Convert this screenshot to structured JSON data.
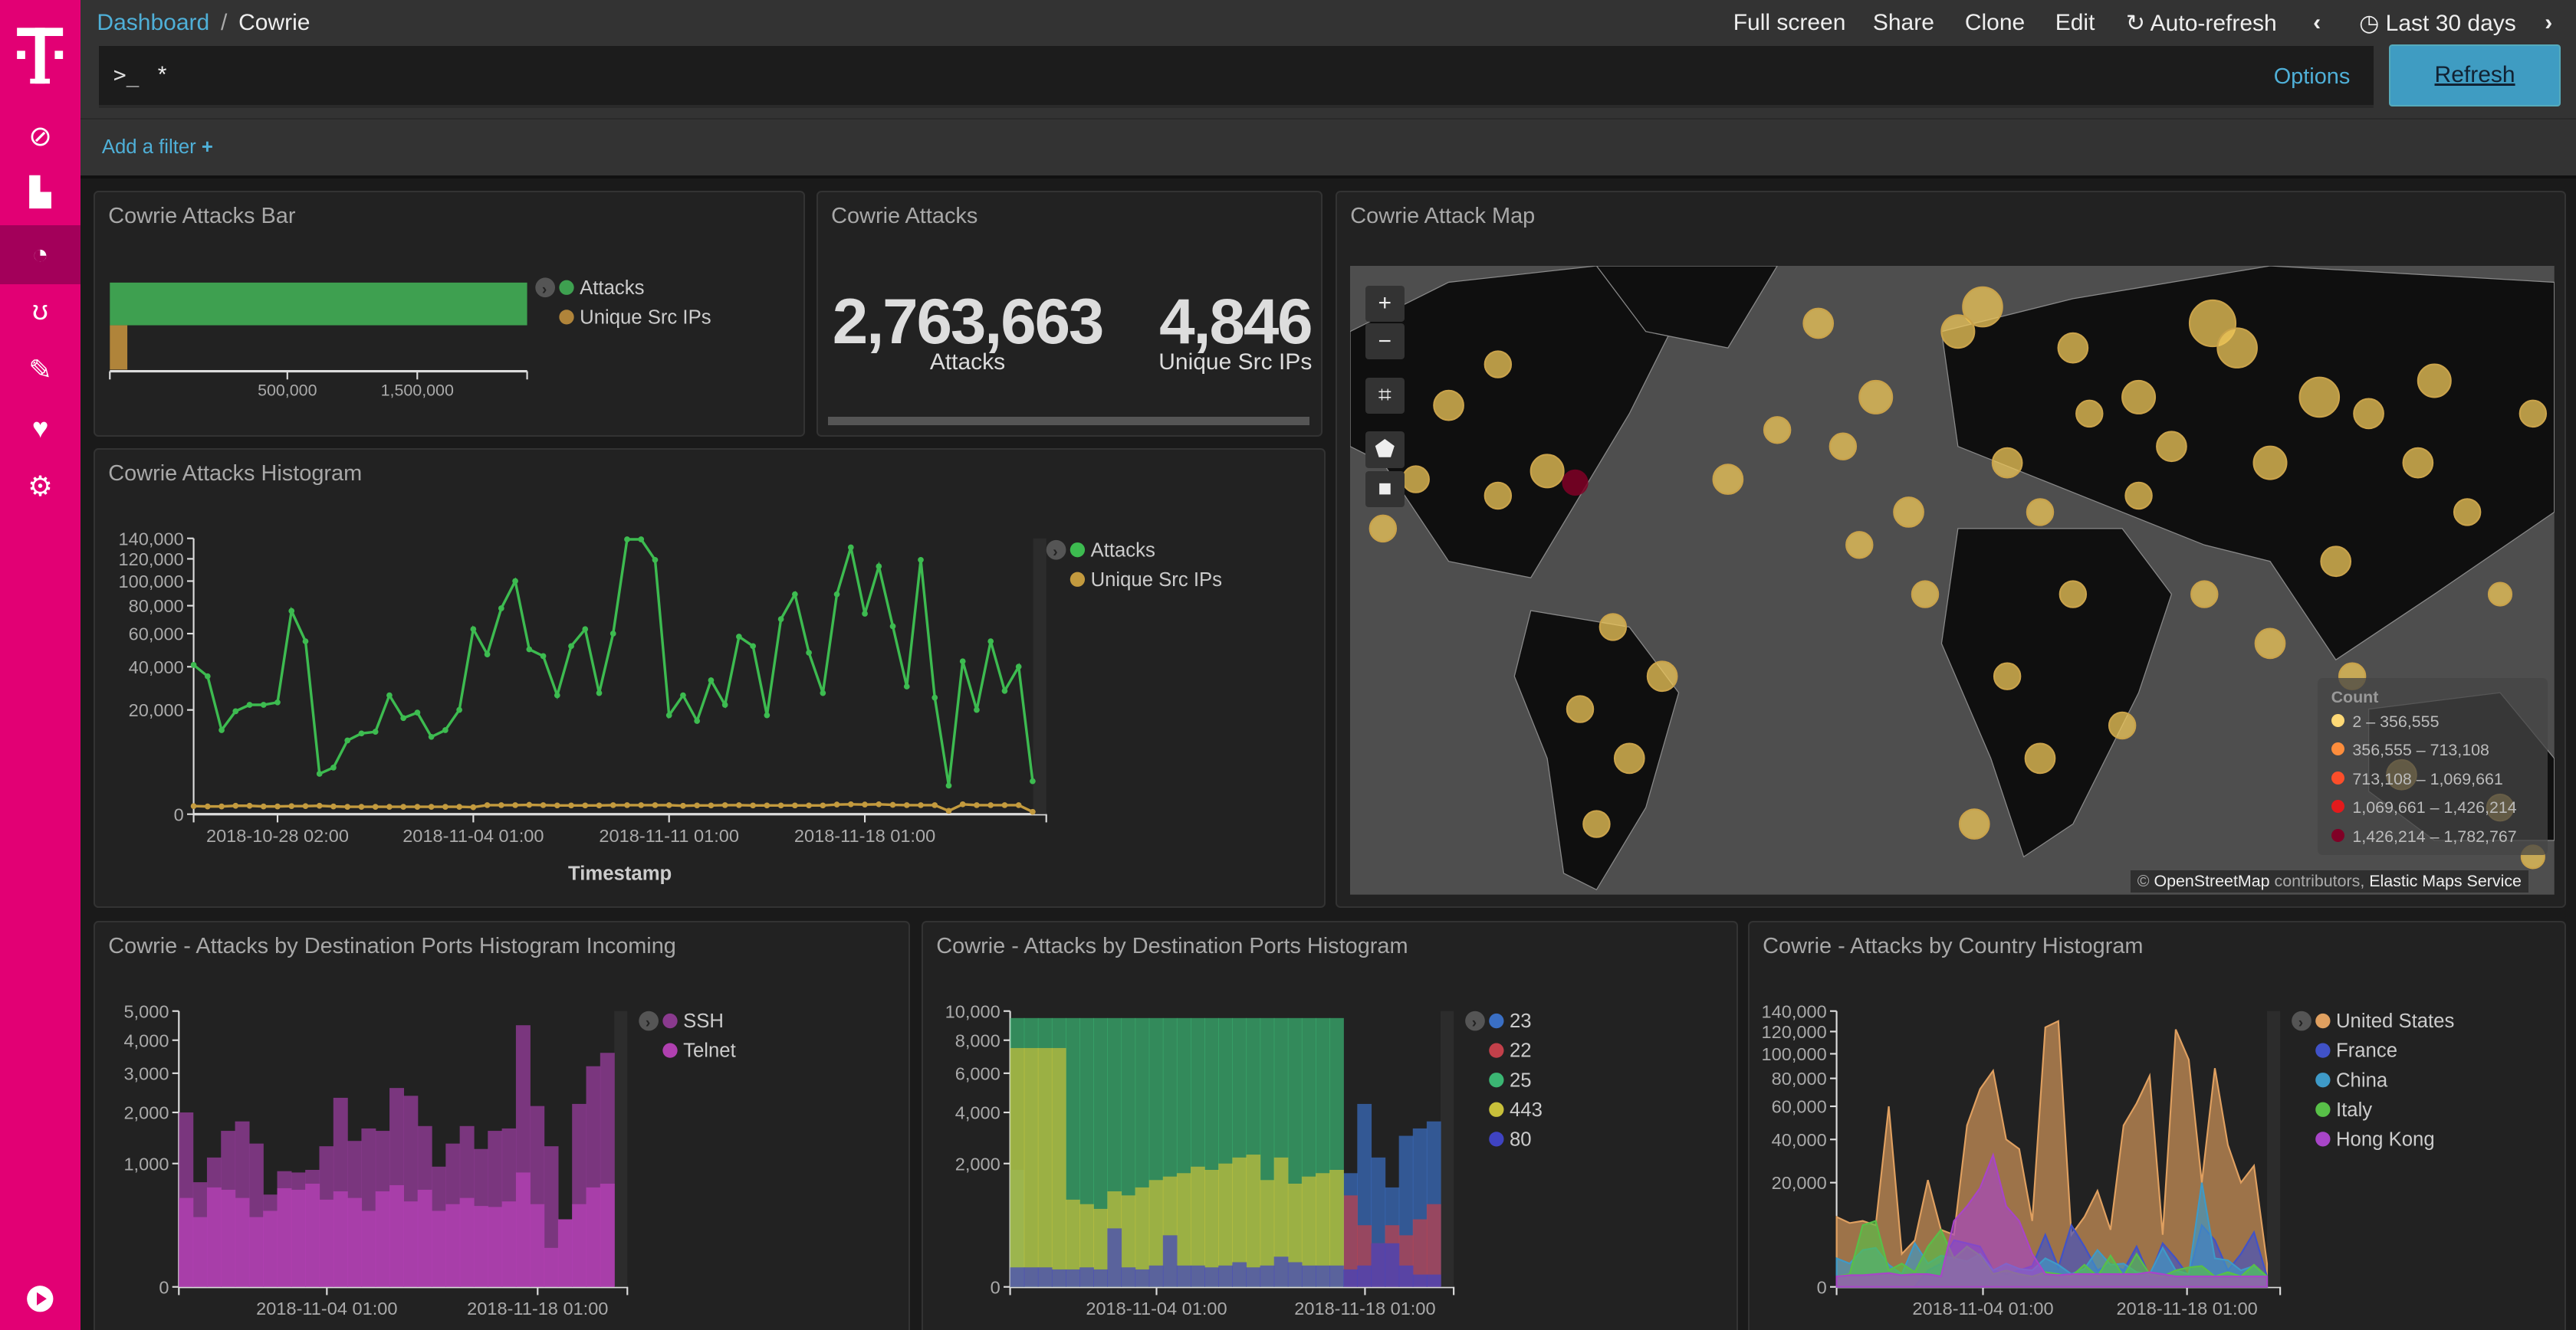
{
  "app": {
    "brand_color": "#e20074",
    "sidebar_items": [
      {
        "name": "discover",
        "icon": "compass-icon"
      },
      {
        "name": "visualize",
        "icon": "bar-chart-icon"
      },
      {
        "name": "dashboard",
        "icon": "dashboard-icon",
        "active": true
      },
      {
        "name": "canvas",
        "icon": "bear-icon"
      },
      {
        "name": "dev-tools",
        "icon": "wrench-icon"
      },
      {
        "name": "monitoring",
        "icon": "heartbeat-icon"
      },
      {
        "name": "management",
        "icon": "gear-icon"
      }
    ]
  },
  "header": {
    "breadcrumb_root": "Dashboard",
    "breadcrumb_sep": "/",
    "breadcrumb_current": "Cowrie",
    "full_screen": "Full screen",
    "share": "Share",
    "clone": "Clone",
    "edit": "Edit",
    "auto_refresh": "Auto-refresh",
    "time_range": "Last 30 days"
  },
  "query": {
    "prompt": ">_",
    "value": "*",
    "options": "Options",
    "refresh": "Refresh"
  },
  "filters": {
    "add_filter": "Add a filter"
  },
  "panels": {
    "bar": {
      "title": "Cowrie Attacks Bar"
    },
    "metric": {
      "title": "Cowrie Attacks",
      "items": [
        {
          "value": "2,763,663",
          "label": "Attacks"
        },
        {
          "value": "4,846",
          "label": "Unique Src IPs"
        }
      ]
    },
    "map": {
      "title": "Cowrie Attack Map",
      "legend_title": "Count",
      "legend": [
        {
          "label": "2 – 356,555",
          "color": "#fed976"
        },
        {
          "label": "356,555 – 713,108",
          "color": "#fd8d3c"
        },
        {
          "label": "713,108 – 1,069,661",
          "color": "#fc4e2a"
        },
        {
          "label": "1,069,661 – 1,426,214",
          "color": "#e31a1c"
        },
        {
          "label": "1,426,214 – 1,782,767",
          "color": "#800026"
        }
      ],
      "attribution_prefix": "©",
      "attribution_osm": "OpenStreetMap",
      "attribution_mid": "contributors,",
      "attribution_ems": "Elastic Maps Service"
    },
    "histogram": {
      "title": "Cowrie Attacks Histogram"
    },
    "ports_in": {
      "title": "Cowrie - Attacks by Destination Ports Histogram Incoming"
    },
    "ports": {
      "title": "Cowrie - Attacks by Destination Ports Histogram"
    },
    "country": {
      "title": "Cowrie - Attacks by Country Histogram"
    }
  },
  "chart_data": [
    {
      "id": "bar",
      "type": "bar",
      "orientation": "horizontal",
      "scale": "sqrt",
      "series": [
        {
          "name": "Attacks",
          "values": [
            2763663
          ],
          "color": "#3ea050"
        },
        {
          "name": "Unique Src IPs",
          "values": [
            4846
          ],
          "color": "#b0843a"
        }
      ],
      "x_ticks": [
        "500,000",
        "1,500,000"
      ],
      "xlim": [
        0,
        2763663
      ]
    },
    {
      "id": "histogram",
      "type": "line",
      "scale": "sqrt",
      "xlabel": "Timestamp",
      "ylim": [
        0,
        140000
      ],
      "y_ticks": [
        "0",
        "20,000",
        "40,000",
        "60,000",
        "80,000",
        "100,000",
        "120,000",
        "140,000"
      ],
      "x_ticks": [
        "2018-10-28 02:00",
        "2018-11-04 01:00",
        "2018-11-11 01:00",
        "2018-11-18 01:00"
      ],
      "series": [
        {
          "name": "Attacks",
          "color": "#3dbb50",
          "values": [
            41000,
            35000,
            13000,
            19500,
            22000,
            22000,
            23000,
            76000,
            55000,
            3000,
            4000,
            10000,
            12000,
            12500,
            26000,
            17000,
            19000,
            11000,
            13000,
            20000,
            63000,
            47000,
            78000,
            100000,
            50000,
            46000,
            26000,
            52000,
            63000,
            27000,
            60000,
            139000,
            139000,
            119000,
            18000,
            26000,
            16000,
            33000,
            22000,
            58000,
            52000,
            18000,
            70000,
            89000,
            48000,
            27000,
            89000,
            131000,
            74000,
            113000,
            65000,
            30000,
            119000,
            25000,
            1500,
            43000,
            20000,
            55000,
            28000,
            40000,
            2000
          ]
        },
        {
          "name": "Unique Src IPs",
          "color": "#c39a3e",
          "values": [
            120,
            110,
            110,
            130,
            130,
            110,
            110,
            120,
            120,
            130,
            110,
            100,
            100,
            100,
            100,
            100,
            100,
            100,
            100,
            100,
            90,
            150,
            150,
            150,
            160,
            150,
            140,
            140,
            140,
            140,
            150,
            150,
            150,
            150,
            150,
            130,
            140,
            140,
            150,
            150,
            140,
            140,
            140,
            140,
            140,
            140,
            170,
            180,
            170,
            180,
            160,
            150,
            150,
            150,
            20,
            180,
            150,
            150,
            150,
            150,
            10
          ]
        }
      ]
    },
    {
      "id": "ports_in",
      "type": "bar",
      "scale": "sqrt",
      "xlabel": "Timestamp",
      "ylim": [
        0,
        5000
      ],
      "y_ticks": [
        "0",
        "1,000",
        "2,000",
        "3,000",
        "4,000",
        "5,000"
      ],
      "x_ticks": [
        "2018-11-04 01:00",
        "2018-11-18 01:00"
      ],
      "series": [
        {
          "name": "SSH",
          "color": "#8a3a8e",
          "values": [
            2000,
            720,
            1100,
            1600,
            1800,
            1350,
            560,
            880,
            860,
            900,
            1300,
            2350,
            1400,
            1650,
            1600,
            2600,
            2400,
            1700,
            950,
            1350,
            1700,
            1250,
            1600,
            1650,
            4500,
            2150,
            1300,
            300,
            2200,
            3200,
            3600
          ]
        },
        {
          "name": "Telnet",
          "color": "#b040b0",
          "values": [
            520,
            320,
            650,
            620,
            520,
            320,
            380,
            640,
            620,
            700,
            500,
            600,
            520,
            380,
            600,
            680,
            480,
            620,
            380,
            450,
            520,
            430,
            420,
            480,
            860,
            450,
            100,
            300,
            450,
            650,
            700
          ]
        }
      ]
    },
    {
      "id": "ports",
      "type": "bar",
      "scale": "sqrt",
      "xlabel": "Timestamp",
      "ylim": [
        0,
        10000
      ],
      "y_ticks": [
        "0",
        "2,000",
        "4,000",
        "6,000",
        "8,000",
        "10,000"
      ],
      "x_ticks": [
        "2018-11-04 01:00",
        "2018-11-18 01:00"
      ],
      "series": [
        {
          "name": "23",
          "color": "#3a6fc4",
          "values": [
            1800,
            0,
            0,
            0,
            0,
            0,
            0,
            0,
            0,
            0,
            0,
            0,
            0,
            0,
            0,
            0,
            0,
            0,
            0,
            0,
            0,
            0,
            0,
            0,
            1700,
            4400,
            2200,
            1300,
            3000,
            3300,
            3600
          ]
        },
        {
          "name": "22",
          "color": "#c2404a",
          "values": [
            0,
            0,
            0,
            0,
            0,
            0,
            0,
            0,
            0,
            0,
            0,
            0,
            0,
            0,
            0,
            0,
            0,
            0,
            0,
            0,
            0,
            0,
            0,
            0,
            1100,
            500,
            250,
            500,
            350,
            600,
            900
          ]
        },
        {
          "name": "25",
          "color": "#3bb673",
          "values": [
            9500,
            9500,
            9500,
            9500,
            9500,
            9500,
            9500,
            9500,
            9500,
            9500,
            9500,
            9500,
            9500,
            9500,
            9500,
            9500,
            9500,
            9500,
            9500,
            9500,
            9500,
            9500,
            9500,
            9500,
            0,
            0,
            0,
            0,
            0,
            0,
            0
          ]
        },
        {
          "name": "443",
          "color": "#c8c03a",
          "values": [
            7500,
            7500,
            7500,
            7500,
            1000,
            900,
            800,
            1200,
            1100,
            1300,
            1500,
            1600,
            1700,
            1900,
            1800,
            2000,
            2200,
            2300,
            1500,
            2200,
            1400,
            1600,
            1700,
            1800,
            0,
            0,
            0,
            0,
            0,
            0,
            0
          ]
        },
        {
          "name": "80",
          "color": "#3f43c2",
          "values": [
            50,
            50,
            50,
            40,
            40,
            50,
            40,
            450,
            50,
            40,
            60,
            350,
            60,
            60,
            50,
            60,
            80,
            50,
            60,
            120,
            80,
            60,
            60,
            60,
            40,
            60,
            250,
            250,
            60,
            20,
            20
          ]
        }
      ]
    },
    {
      "id": "country",
      "type": "area",
      "scale": "sqrt",
      "xlabel": "Timestamp",
      "ylim": [
        0,
        140000
      ],
      "y_ticks": [
        "0",
        "20,000",
        "40,000",
        "60,000",
        "80,000",
        "100,000",
        "120,000",
        "140,000"
      ],
      "x_ticks": [
        "2018-11-04 01:00",
        "2018-11-18 01:00"
      ],
      "series": [
        {
          "name": "United States",
          "color": "#e0a060",
          "values": [
            9000,
            7500,
            8000,
            7000,
            60000,
            2000,
            4000,
            21000,
            6000,
            5000,
            48000,
            72000,
            86000,
            40000,
            35000,
            8000,
            124000,
            130000,
            5000,
            9000,
            17000,
            6000,
            48000,
            62000,
            82000,
            5000,
            122000,
            95000,
            20000,
            88000,
            37000,
            20000,
            27000,
            1000
          ]
        },
        {
          "name": "France",
          "color": "#4052c8",
          "values": [
            0,
            0,
            0,
            0,
            0,
            0,
            0,
            500,
            1000,
            4000,
            3500,
            3000,
            500,
            300,
            500,
            800,
            5000,
            700,
            7000,
            3000,
            500,
            1000,
            500,
            3000,
            200,
            3500,
            1500,
            200,
            7000,
            4000,
            500,
            2000,
            5500,
            200
          ]
        },
        {
          "name": "China",
          "color": "#3e9ac8",
          "values": [
            1500,
            1000,
            2500,
            2800,
            900,
            300,
            3500,
            1000,
            1800,
            1500,
            1200,
            2000,
            500,
            1000,
            600,
            500,
            1500,
            900,
            300,
            600,
            2500,
            900,
            1000,
            400,
            300,
            2800,
            500,
            300,
            20000,
            1500,
            1300,
            500,
            800,
            200
          ]
        },
        {
          "name": "Italy",
          "color": "#58c048",
          "values": [
            200,
            300,
            7000,
            8000,
            500,
            1000,
            400,
            3000,
            6000,
            1500,
            3000,
            1800,
            300,
            500,
            300,
            200,
            400,
            300,
            200,
            900,
            200,
            1800,
            200,
            2000,
            300,
            200,
            500,
            700,
            800,
            200,
            400,
            200,
            900,
            200
          ]
        },
        {
          "name": "Hong Kong",
          "color": "#a845c8",
          "values": [
            200,
            250,
            250,
            300,
            350,
            250,
            300,
            300,
            200,
            8000,
            12000,
            18000,
            32000,
            12000,
            8000,
            2000,
            300,
            250,
            300,
            300,
            300,
            300,
            300,
            300,
            400,
            300,
            200,
            200,
            200,
            200,
            200,
            200,
            200,
            200
          ]
        }
      ]
    }
  ]
}
